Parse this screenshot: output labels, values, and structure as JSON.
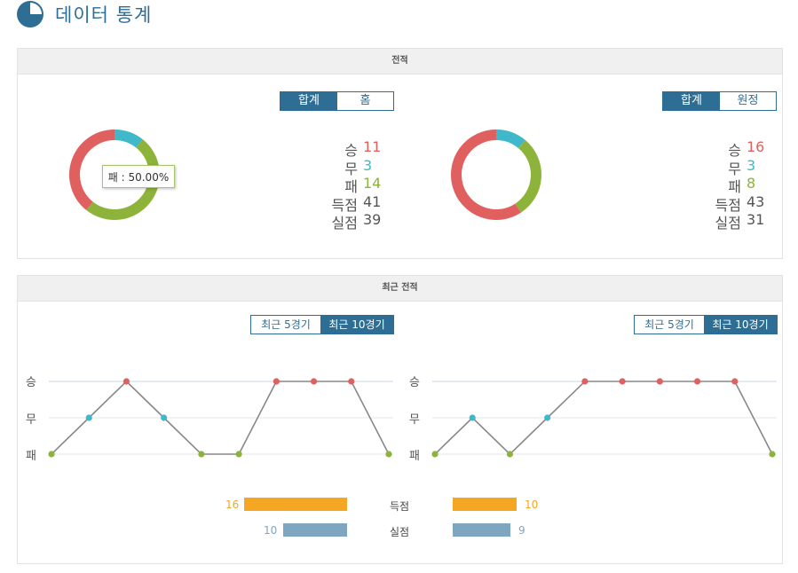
{
  "page_title": "데이터 통계",
  "record": {
    "header": "전적",
    "home": {
      "toggle": [
        "합계",
        "홈"
      ],
      "stats": [
        {
          "label": "승",
          "value": "11",
          "color": "#e06060"
        },
        {
          "label": "무",
          "value": "3",
          "color": "#3fb8c9"
        },
        {
          "label": "패",
          "value": "14",
          "color": "#8db33a"
        },
        {
          "label": "득점",
          "value": "41",
          "color": "#555555"
        },
        {
          "label": "실점",
          "value": "39",
          "color": "#555555"
        }
      ],
      "donut": {
        "win": 11,
        "draw": 3,
        "loss": 14
      },
      "tooltip": "패 : 50.00%"
    },
    "away": {
      "toggle": [
        "합계",
        "원정"
      ],
      "stats": [
        {
          "label": "승",
          "value": "16",
          "color": "#e06060"
        },
        {
          "label": "무",
          "value": "3",
          "color": "#3fb8c9"
        },
        {
          "label": "패",
          "value": "8",
          "color": "#8db33a"
        },
        {
          "label": "득점",
          "value": "43",
          "color": "#555555"
        },
        {
          "label": "실점",
          "value": "31",
          "color": "#555555"
        }
      ],
      "donut": {
        "win": 16,
        "draw": 3,
        "loss": 8
      }
    }
  },
  "recent": {
    "header": "최근 전적",
    "toggle": [
      "최근 5경기",
      "최근 10경기"
    ],
    "axis": [
      "승",
      "무",
      "패"
    ],
    "home_results": [
      "패",
      "무",
      "승",
      "무",
      "패",
      "패",
      "승",
      "승",
      "승",
      "패"
    ],
    "away_results": [
      "패",
      "무",
      "패",
      "무",
      "승",
      "승",
      "승",
      "승",
      "승",
      "패"
    ],
    "bars": {
      "scored": {
        "label": "득점",
        "home": "16",
        "away": "10"
      },
      "conceded": {
        "label": "실점",
        "home": "10",
        "away": "9"
      }
    }
  },
  "colors": {
    "win": "#e06060",
    "draw": "#3fb8c9",
    "loss": "#8db33a",
    "accent": "#2f6e94",
    "scored_bar": "#f5a623",
    "conceded_bar": "#7ea6c0"
  }
}
